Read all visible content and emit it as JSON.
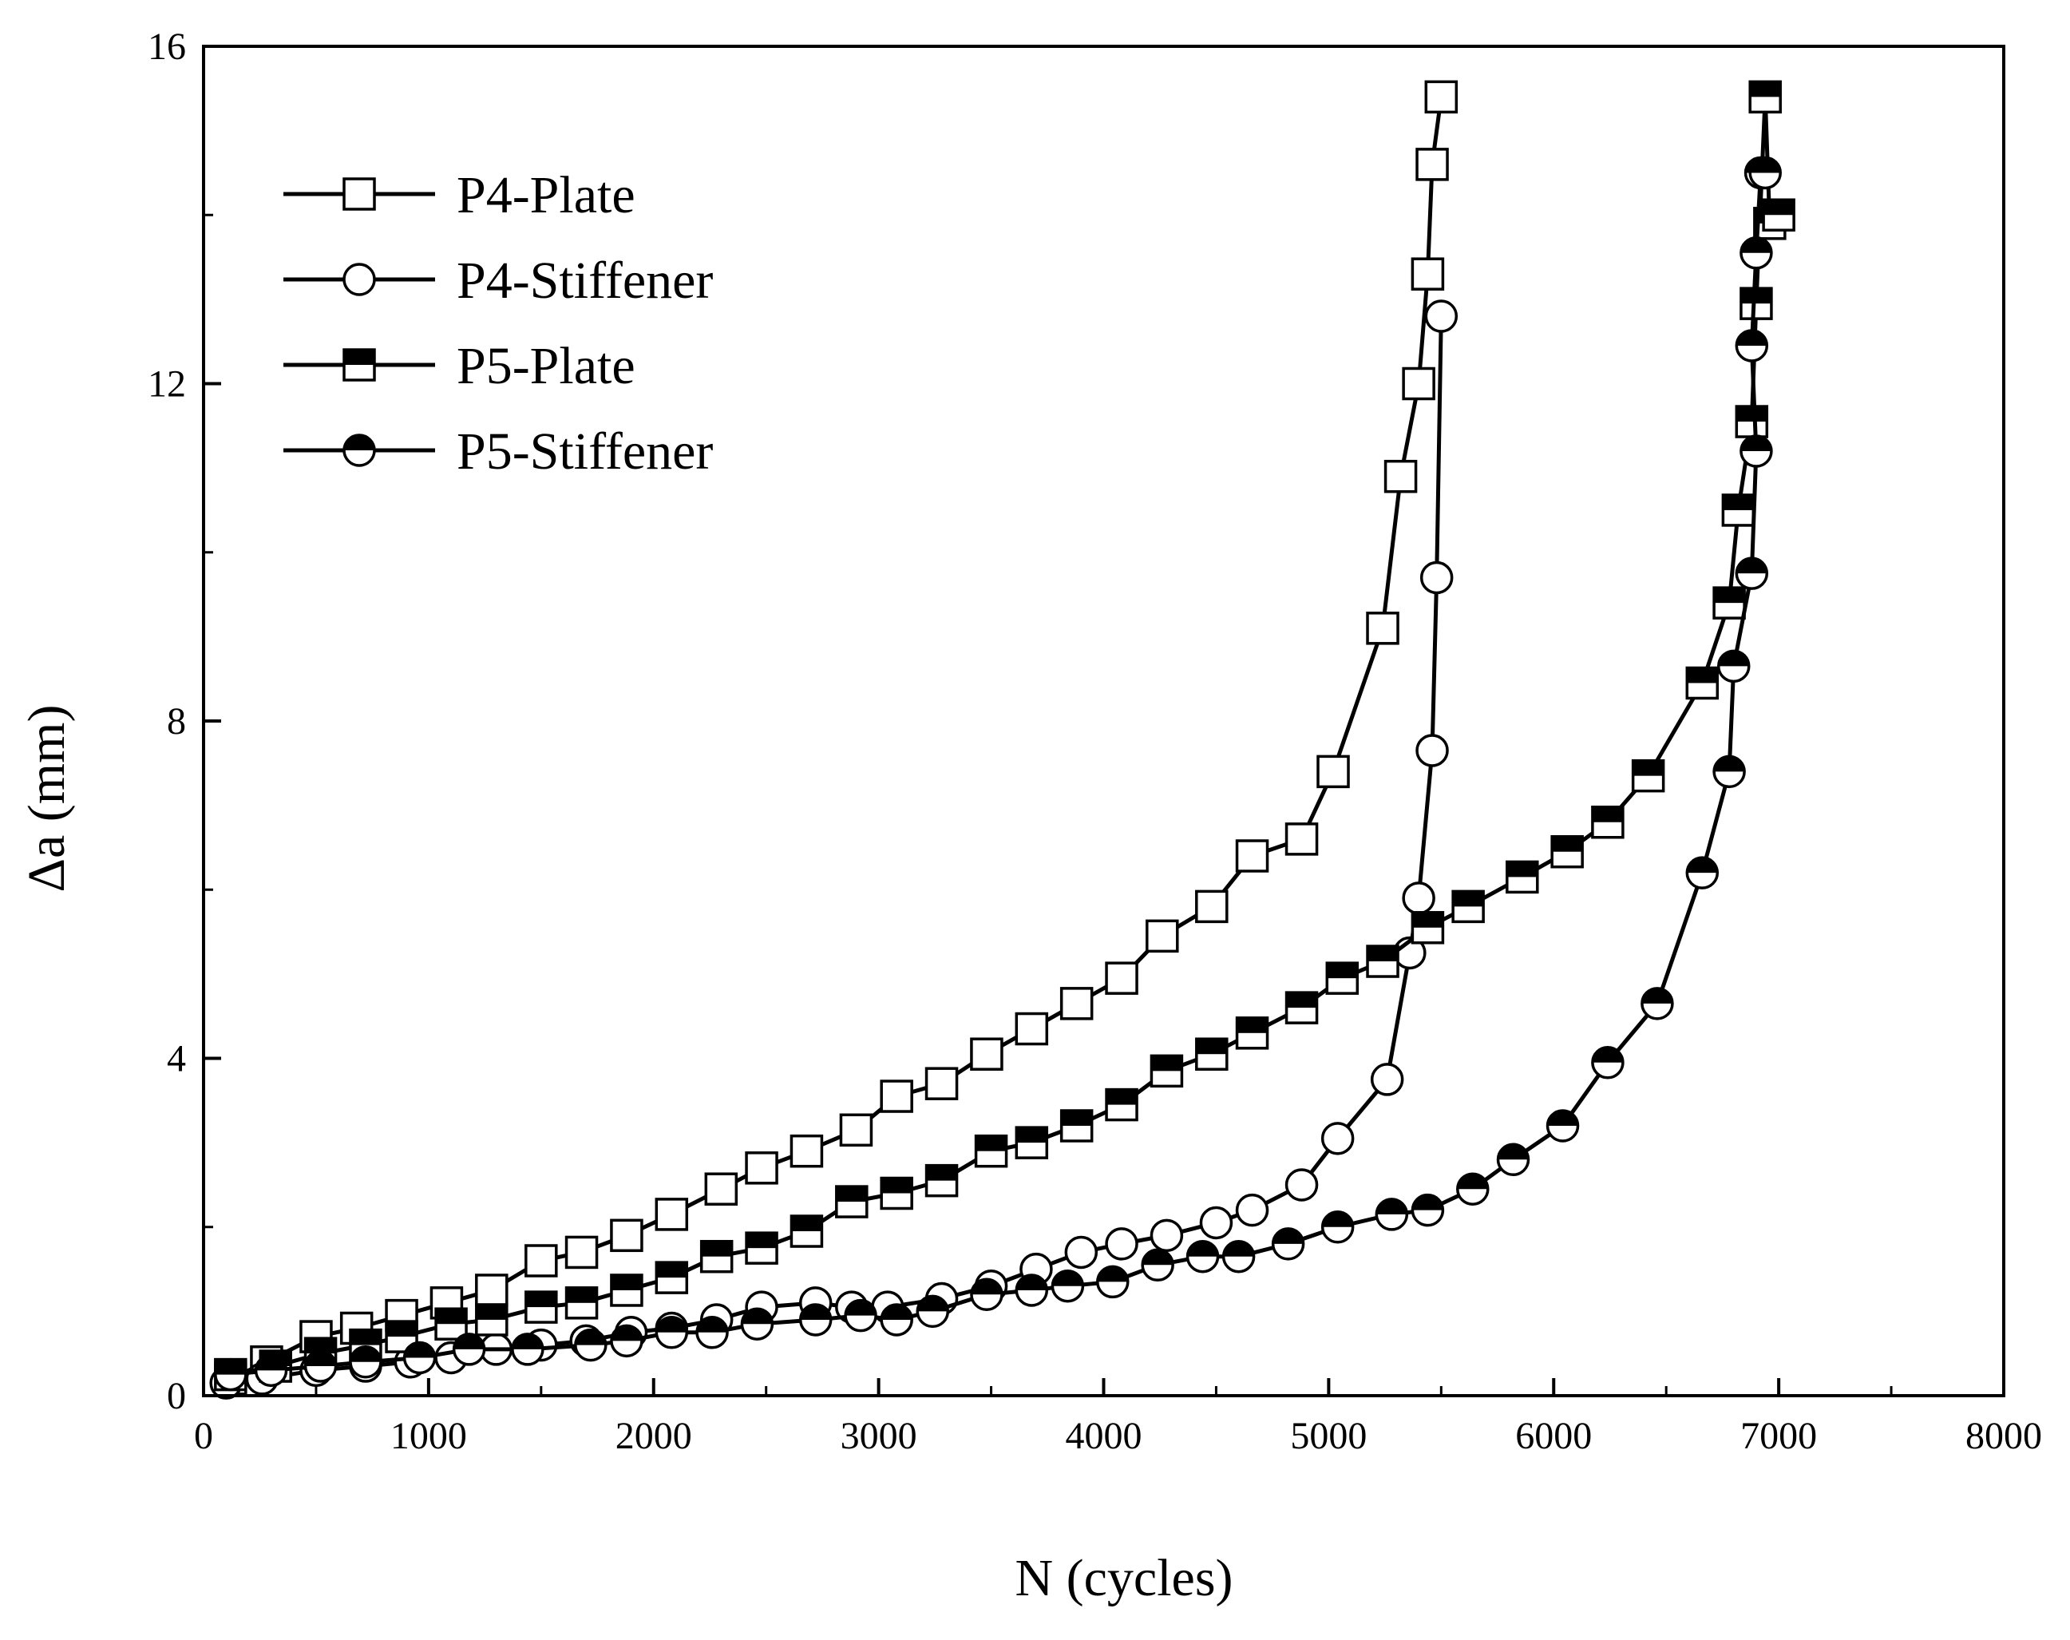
{
  "chart_data": {
    "type": "line",
    "title": "",
    "xlabel": "N  (cycles)",
    "ylabel": "Δa (mm)",
    "xlim": [
      0,
      8000
    ],
    "ylim": [
      0,
      16
    ],
    "x_ticks": [
      0,
      1000,
      2000,
      3000,
      4000,
      5000,
      6000,
      7000,
      8000
    ],
    "y_ticks": [
      0,
      4,
      8,
      12,
      16
    ],
    "x_tick_labels": [
      "0",
      "1000",
      "2000",
      "3000",
      "4000",
      "5000",
      "6000",
      "7000",
      "8000"
    ],
    "y_tick_labels": [
      "0",
      "4",
      "8",
      "12",
      "16"
    ],
    "grid": false,
    "legend_position": "top-left",
    "series": [
      {
        "name": "P4-Plate",
        "marker": "square-open",
        "color": "#000000",
        "x": [
          120,
          280,
          500,
          680,
          880,
          1080,
          1280,
          1500,
          1680,
          1880,
          2080,
          2300,
          2480,
          2680,
          2900,
          3080,
          3280,
          3480,
          3680,
          3880,
          4080,
          4260,
          4480,
          4660,
          4880,
          5020,
          5240,
          5320,
          5400,
          5440,
          5460,
          5500
        ],
        "y": [
          0.2,
          0.4,
          0.7,
          0.8,
          0.95,
          1.1,
          1.25,
          1.6,
          1.7,
          1.9,
          2.15,
          2.45,
          2.7,
          2.9,
          3.15,
          3.55,
          3.7,
          4.05,
          4.35,
          4.65,
          4.95,
          5.45,
          5.8,
          6.4,
          6.6,
          7.4,
          9.1,
          10.9,
          12.0,
          13.3,
          14.6,
          15.4
        ]
      },
      {
        "name": "P4-Stiffener",
        "marker": "circle-open",
        "color": "#000000",
        "x": [
          100,
          260,
          500,
          720,
          920,
          1100,
          1300,
          1500,
          1700,
          1900,
          2080,
          2280,
          2480,
          2720,
          2880,
          3040,
          3280,
          3500,
          3700,
          3900,
          4080,
          4280,
          4500,
          4660,
          4880,
          5040,
          5260,
          5360,
          5400,
          5460,
          5480,
          5500
        ],
        "y": [
          0.15,
          0.2,
          0.3,
          0.35,
          0.4,
          0.45,
          0.55,
          0.6,
          0.65,
          0.75,
          0.8,
          0.9,
          1.05,
          1.1,
          1.05,
          1.05,
          1.15,
          1.3,
          1.5,
          1.7,
          1.8,
          1.9,
          2.05,
          2.2,
          2.5,
          3.05,
          3.75,
          5.25,
          5.9,
          7.65,
          9.7,
          12.8
        ]
      },
      {
        "name": "P5-Plate",
        "marker": "square-half",
        "color": "#000000",
        "x": [
          120,
          320,
          520,
          720,
          880,
          1100,
          1280,
          1500,
          1680,
          1880,
          2080,
          2280,
          2480,
          2680,
          2880,
          3080,
          3280,
          3500,
          3680,
          3880,
          4080,
          4280,
          4480,
          4660,
          4880,
          5060,
          5240,
          5440,
          5620,
          5860,
          6060,
          6240,
          6420,
          6660,
          6780,
          6820,
          6880,
          6900,
          6940,
          6960,
          7000
        ],
        "y": [
          0.25,
          0.35,
          0.5,
          0.6,
          0.7,
          0.85,
          0.9,
          1.05,
          1.1,
          1.25,
          1.4,
          1.65,
          1.75,
          1.95,
          2.3,
          2.4,
          2.55,
          2.9,
          3.0,
          3.2,
          3.45,
          3.85,
          4.05,
          4.3,
          4.6,
          4.95,
          5.15,
          5.55,
          5.8,
          6.15,
          6.45,
          6.8,
          7.35,
          8.45,
          9.4,
          10.5,
          11.55,
          12.95,
          15.4,
          13.9,
          14.0
        ]
      },
      {
        "name": "P5-Stiffener",
        "marker": "circle-half",
        "color": "#000000",
        "x": [
          120,
          300,
          520,
          720,
          960,
          1180,
          1440,
          1720,
          1880,
          2080,
          2260,
          2460,
          2720,
          2920,
          3080,
          3240,
          3480,
          3680,
          3840,
          4040,
          4240,
          4440,
          4600,
          4820,
          5040,
          5280,
          5440,
          5640,
          5820,
          6040,
          6240,
          6460,
          6660,
          6780,
          6800,
          6880,
          6900,
          6880,
          6900,
          6920,
          6940
        ],
        "y": [
          0.25,
          0.3,
          0.35,
          0.4,
          0.45,
          0.55,
          0.55,
          0.6,
          0.65,
          0.75,
          0.75,
          0.85,
          0.9,
          0.95,
          0.9,
          1.0,
          1.2,
          1.25,
          1.3,
          1.35,
          1.55,
          1.65,
          1.65,
          1.8,
          2.0,
          2.15,
          2.2,
          2.45,
          2.8,
          3.2,
          3.95,
          4.65,
          6.2,
          7.4,
          8.65,
          9.75,
          11.2,
          12.45,
          13.55,
          14.5,
          14.5
        ]
      }
    ]
  }
}
